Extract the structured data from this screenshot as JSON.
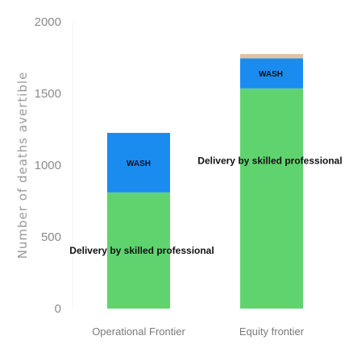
{
  "chart_data": {
    "type": "bar",
    "stacked": true,
    "title": "",
    "xlabel": "",
    "ylabel": "Number of deaths avertible",
    "ylim": [
      0,
      2000
    ],
    "yticks": [
      0,
      500,
      1000,
      1500,
      2000
    ],
    "grid": false,
    "categories": [
      "Operational Frontier",
      "Equity frontier"
    ],
    "series": [
      {
        "name": "Delivery by skilled professional",
        "values": [
          810,
          1535
        ],
        "color": "#5fd46e"
      },
      {
        "name": "WASH",
        "values": [
          415,
          210
        ],
        "color": "#1a8cf0"
      },
      {
        "values": [
          0,
          30
        ],
        "color": "#e3c29e"
      }
    ]
  }
}
